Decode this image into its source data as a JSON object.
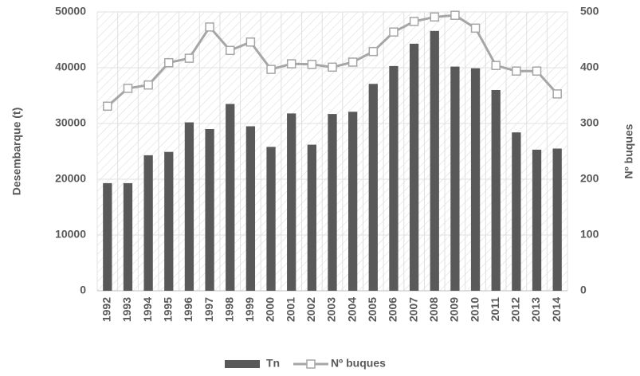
{
  "chart_data": {
    "type": "bar",
    "categories": [
      "1992",
      "1993",
      "1994",
      "1995",
      "1996",
      "1997",
      "1998",
      "1999",
      "2000",
      "2001",
      "2002",
      "2003",
      "2004",
      "2005",
      "2006",
      "2007",
      "2008",
      "2009",
      "2010",
      "2011",
      "2012",
      "2013",
      "2014"
    ],
    "series": [
      {
        "name": "Tn",
        "type": "bar",
        "color": "#595959",
        "values": [
          19300,
          19300,
          24300,
          24900,
          30200,
          29000,
          33500,
          29500,
          25800,
          31800,
          26200,
          31700,
          32100,
          37100,
          40300,
          44300,
          46600,
          40200,
          39900,
          36000,
          28400,
          25300,
          25500
        ]
      },
      {
        "name": "Nº buques",
        "type": "line",
        "axis": "y2",
        "color": "#a6a6a6",
        "values": [
          331,
          363,
          369,
          409,
          417,
          473,
          431,
          446,
          397,
          407,
          406,
          401,
          410,
          429,
          464,
          483,
          491,
          494,
          471,
          404,
          394,
          394,
          353
        ]
      }
    ],
    "ylabel": "Desembarque (t)",
    "y2label": "Nº buques",
    "ylim": [
      0,
      50000
    ],
    "yticks": [
      0,
      10000,
      20000,
      30000,
      40000,
      50000
    ],
    "y2lim": [
      0,
      500
    ],
    "y2ticks": [
      0,
      100,
      200,
      300,
      400,
      500
    ],
    "grid": true,
    "legend": "bottom"
  }
}
